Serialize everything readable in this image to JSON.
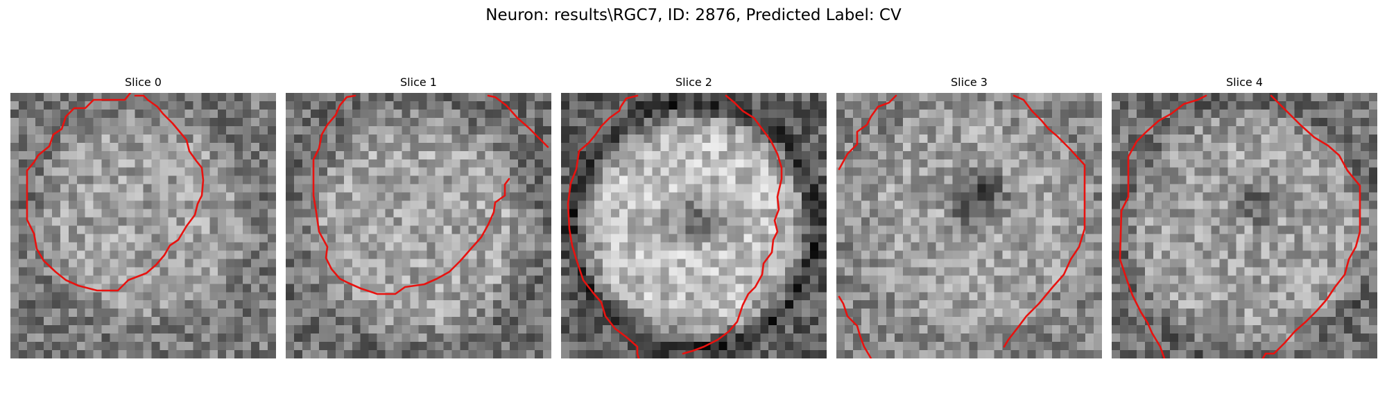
{
  "figure": {
    "title": "Neuron: results\\RGC7, ID: 2876, Predicted Label: CV"
  },
  "colors": {
    "contour": "#e8120f",
    "background": "#ffffff",
    "text": "#000000"
  },
  "panels": [
    {
      "title": "Slice 0"
    },
    {
      "title": "Slice 1"
    },
    {
      "title": "Slice 2"
    },
    {
      "title": "Slice 3"
    },
    {
      "title": "Slice 4"
    }
  ]
}
